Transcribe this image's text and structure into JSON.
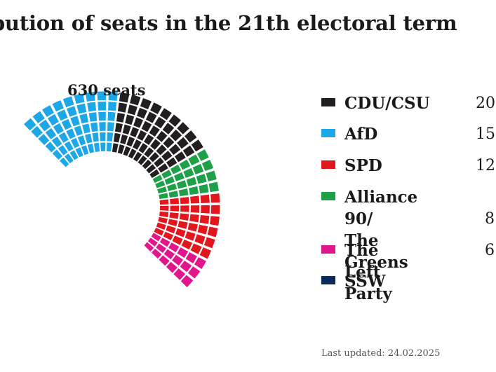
{
  "chart_data": {
    "type": "parliament",
    "title": "ibution of seats in the 21th electoral term",
    "total_label": "630 seats",
    "series": [
      {
        "name": "CDU/CSU",
        "seats_shown": "20",
        "color": "#231f20"
      },
      {
        "name": "AfD",
        "seats_shown": "15",
        "color": "#1ea7e6"
      },
      {
        "name": "SPD",
        "seats_shown": "12",
        "color": "#e3151d"
      },
      {
        "name": "Alliance 90/\nThe Greens",
        "seats_shown": "8",
        "color": "#1ea049"
      },
      {
        "name": "The Left Party",
        "seats_shown": "6",
        "color": "#e2168c"
      },
      {
        "name": "SSW",
        "seats_shown": "",
        "color": "#0b2a5a"
      }
    ],
    "arc_segments": [
      {
        "party": "AfD",
        "cols": 9
      },
      {
        "party": "CDU/CSU",
        "cols": 9
      },
      {
        "party": "Alliance 90/\nThe Greens",
        "cols": 4
      },
      {
        "party": "SPD",
        "cols": 6
      },
      {
        "party": "The Left Party",
        "cols": 3
      }
    ],
    "rows": 6
  },
  "footer": {
    "last_updated": "Last updated: 24.02.2025"
  }
}
